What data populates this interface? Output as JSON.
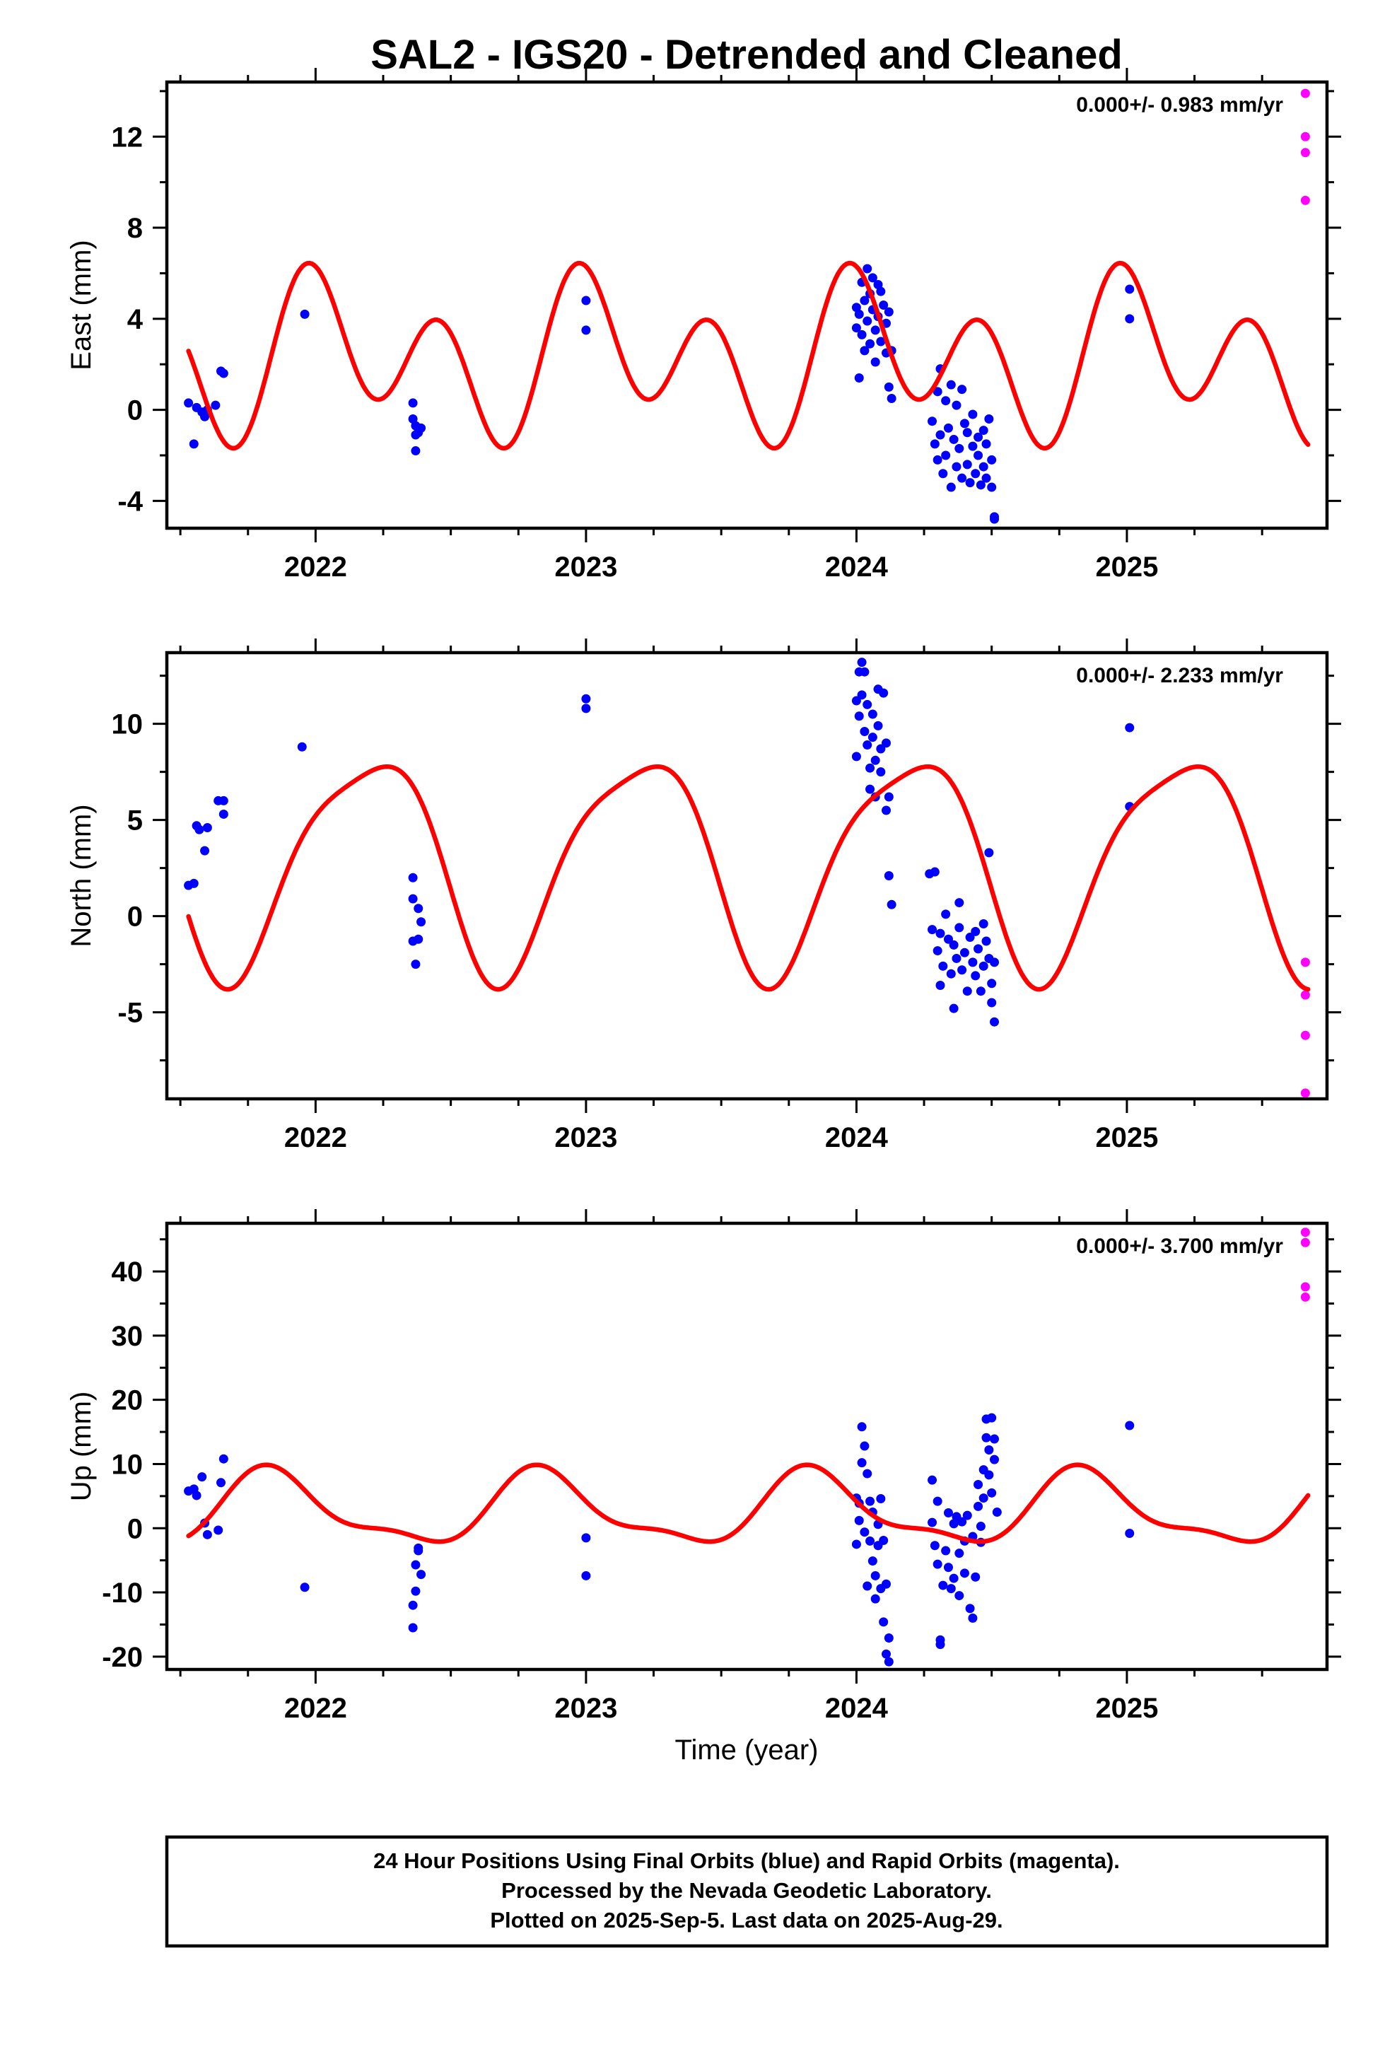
{
  "title": "SAL2 - IGS20 - Detrended and Cleaned",
  "xlabel": "Time (year)",
  "footer": {
    "lines": [
      "24 Hour Positions Using Final Orbits (blue) and Rapid Orbits (magenta).",
      "Processed by the Nevada Geodetic Laboratory.",
      "Plotted on 2025-Sep-5. Last data on 2025-Aug-29."
    ]
  },
  "colors": {
    "final": "#0000ff",
    "rapid": "#ff00ff",
    "model": "#ff0000"
  },
  "chart_data": [
    {
      "type": "scatter",
      "ylabel": "East (mm)",
      "rate_label": "0.000+/- 0.983 mm/yr",
      "xlim": [
        2021.45,
        2025.74
      ],
      "ylim": [
        -5.2,
        14.4
      ],
      "xticks": [
        2022,
        2023,
        2024,
        2025
      ],
      "yticks": [
        -4,
        0,
        4,
        8,
        12
      ],
      "model": {
        "mean": 2.3,
        "a1": 1.65,
        "p1": 1.1,
        "a2": 2.85,
        "p2": 2.05
      },
      "final": [
        [
          2021.53,
          0.3
        ],
        [
          2021.55,
          -1.5
        ],
        [
          2021.56,
          0.1
        ],
        [
          2021.58,
          -0.1
        ],
        [
          2021.59,
          -0.3
        ],
        [
          2021.6,
          0.0
        ],
        [
          2021.63,
          0.2
        ],
        [
          2021.65,
          1.7
        ],
        [
          2021.66,
          1.6
        ],
        [
          2021.96,
          4.2
        ],
        [
          2022.36,
          0.3
        ],
        [
          2022.36,
          -0.4
        ],
        [
          2022.37,
          -0.7
        ],
        [
          2022.37,
          -1.1
        ],
        [
          2022.37,
          -1.8
        ],
        [
          2022.38,
          -1.0
        ],
        [
          2022.39,
          -0.8
        ],
        [
          2023.0,
          4.8
        ],
        [
          2023.0,
          3.5
        ],
        [
          2024.0,
          4.5
        ],
        [
          2024.0,
          3.6
        ],
        [
          2024.01,
          4.2
        ],
        [
          2024.01,
          1.4
        ],
        [
          2024.02,
          5.6
        ],
        [
          2024.02,
          3.3
        ],
        [
          2024.03,
          4.8
        ],
        [
          2024.03,
          2.6
        ],
        [
          2024.04,
          6.2
        ],
        [
          2024.04,
          3.9
        ],
        [
          2024.05,
          5.1
        ],
        [
          2024.05,
          2.9
        ],
        [
          2024.06,
          5.8
        ],
        [
          2024.06,
          4.4
        ],
        [
          2024.07,
          3.5
        ],
        [
          2024.07,
          2.1
        ],
        [
          2024.08,
          5.5
        ],
        [
          2024.08,
          4.1
        ],
        [
          2024.09,
          5.2
        ],
        [
          2024.09,
          3.0
        ],
        [
          2024.1,
          4.6
        ],
        [
          2024.11,
          3.8
        ],
        [
          2024.11,
          2.5
        ],
        [
          2024.12,
          4.3
        ],
        [
          2024.12,
          1.0
        ],
        [
          2024.13,
          2.6
        ],
        [
          2024.13,
          0.5
        ],
        [
          2024.28,
          -0.5
        ],
        [
          2024.29,
          -1.5
        ],
        [
          2024.3,
          0.8
        ],
        [
          2024.3,
          -2.2
        ],
        [
          2024.31,
          1.8
        ],
        [
          2024.31,
          -1.1
        ],
        [
          2024.32,
          -2.8
        ],
        [
          2024.33,
          0.4
        ],
        [
          2024.33,
          -2.0
        ],
        [
          2024.34,
          -0.8
        ],
        [
          2024.35,
          -3.4
        ],
        [
          2024.35,
          1.1
        ],
        [
          2024.36,
          -1.3
        ],
        [
          2024.37,
          -2.5
        ],
        [
          2024.37,
          0.2
        ],
        [
          2024.38,
          -1.7
        ],
        [
          2024.39,
          -3.0
        ],
        [
          2024.39,
          0.9
        ],
        [
          2024.4,
          -0.6
        ],
        [
          2024.41,
          -2.4
        ],
        [
          2024.41,
          -1.0
        ],
        [
          2024.42,
          -3.2
        ],
        [
          2024.43,
          -1.6
        ],
        [
          2024.43,
          -0.2
        ],
        [
          2024.44,
          -2.8
        ],
        [
          2024.45,
          -1.2
        ],
        [
          2024.45,
          -2.0
        ],
        [
          2024.46,
          -3.3
        ],
        [
          2024.47,
          -0.9
        ],
        [
          2024.47,
          -2.5
        ],
        [
          2024.48,
          -1.5
        ],
        [
          2024.48,
          -3.0
        ],
        [
          2024.49,
          -0.4
        ],
        [
          2024.5,
          -2.2
        ],
        [
          2024.5,
          -3.4
        ],
        [
          2024.51,
          -4.7
        ],
        [
          2024.51,
          -4.8
        ],
        [
          2025.01,
          5.3
        ],
        [
          2025.01,
          4.0
        ]
      ],
      "rapid": [
        [
          2025.66,
          13.9
        ],
        [
          2025.66,
          12.0
        ],
        [
          2025.66,
          11.3
        ],
        [
          2025.66,
          9.2
        ]
      ]
    },
    {
      "type": "scatter",
      "ylabel": "North (mm)",
      "rate_label": "0.000+/- 2.233 mm/yr",
      "xlim": [
        2021.45,
        2025.74
      ],
      "ylim": [
        -9.5,
        13.7
      ],
      "xticks": [
        2022,
        2023,
        2024,
        2025
      ],
      "yticks": [
        -5,
        0,
        5,
        10
      ],
      "model": {
        "mean": 2.9,
        "a1": 5.6,
        "p1": 0.35,
        "a2": 1.2,
        "p2": 2.8
      },
      "final": [
        [
          2021.53,
          1.6
        ],
        [
          2021.55,
          1.7
        ],
        [
          2021.56,
          4.7
        ],
        [
          2021.57,
          4.5
        ],
        [
          2021.59,
          3.4
        ],
        [
          2021.6,
          4.6
        ],
        [
          2021.64,
          6.0
        ],
        [
          2021.66,
          6.0
        ],
        [
          2021.66,
          5.3
        ],
        [
          2021.95,
          8.8
        ],
        [
          2022.36,
          2.0
        ],
        [
          2022.36,
          0.9
        ],
        [
          2022.36,
          -1.3
        ],
        [
          2022.37,
          -2.5
        ],
        [
          2022.38,
          0.4
        ],
        [
          2022.38,
          -1.2
        ],
        [
          2022.39,
          -0.3
        ],
        [
          2023.0,
          11.3
        ],
        [
          2023.0,
          10.8
        ],
        [
          2024.0,
          11.2
        ],
        [
          2024.0,
          8.3
        ],
        [
          2024.01,
          12.7
        ],
        [
          2024.01,
          10.4
        ],
        [
          2024.02,
          13.2
        ],
        [
          2024.02,
          11.5
        ],
        [
          2024.03,
          12.7
        ],
        [
          2024.03,
          9.6
        ],
        [
          2024.04,
          11.0
        ],
        [
          2024.04,
          8.9
        ],
        [
          2024.05,
          7.7
        ],
        [
          2024.05,
          6.6
        ],
        [
          2024.06,
          10.5
        ],
        [
          2024.06,
          9.3
        ],
        [
          2024.07,
          8.1
        ],
        [
          2024.07,
          6.2
        ],
        [
          2024.08,
          11.8
        ],
        [
          2024.08,
          9.9
        ],
        [
          2024.09,
          7.5
        ],
        [
          2024.09,
          8.7
        ],
        [
          2024.1,
          11.6
        ],
        [
          2024.11,
          9.0
        ],
        [
          2024.11,
          5.5
        ],
        [
          2024.12,
          6.2
        ],
        [
          2024.12,
          2.1
        ],
        [
          2024.13,
          0.6
        ],
        [
          2024.27,
          2.2
        ],
        [
          2024.28,
          -0.7
        ],
        [
          2024.29,
          2.3
        ],
        [
          2024.3,
          -1.8
        ],
        [
          2024.31,
          -3.6
        ],
        [
          2024.31,
          -0.9
        ],
        [
          2024.32,
          -2.6
        ],
        [
          2024.33,
          0.1
        ],
        [
          2024.34,
          -1.2
        ],
        [
          2024.35,
          -3.0
        ],
        [
          2024.36,
          -4.8
        ],
        [
          2024.36,
          -1.5
        ],
        [
          2024.37,
          -2.2
        ],
        [
          2024.38,
          0.7
        ],
        [
          2024.38,
          -0.6
        ],
        [
          2024.39,
          -2.8
        ],
        [
          2024.4,
          -1.9
        ],
        [
          2024.41,
          -3.9
        ],
        [
          2024.42,
          -1.1
        ],
        [
          2024.43,
          -2.4
        ],
        [
          2024.44,
          -3.1
        ],
        [
          2024.44,
          -0.8
        ],
        [
          2024.45,
          -1.7
        ],
        [
          2024.46,
          -3.9
        ],
        [
          2024.47,
          -2.6
        ],
        [
          2024.47,
          -0.4
        ],
        [
          2024.48,
          -1.3
        ],
        [
          2024.49,
          -2.2
        ],
        [
          2024.49,
          3.3
        ],
        [
          2024.5,
          -3.5
        ],
        [
          2024.5,
          -4.5
        ],
        [
          2024.51,
          -2.4
        ],
        [
          2024.51,
          -5.5
        ],
        [
          2025.01,
          9.8
        ],
        [
          2025.01,
          5.7
        ]
      ],
      "rapid": [
        [
          2025.66,
          -2.4
        ],
        [
          2025.66,
          -4.1
        ],
        [
          2025.66,
          -6.2
        ],
        [
          2025.66,
          -9.2
        ]
      ]
    },
    {
      "type": "scatter",
      "ylabel": "Up (mm)",
      "rate_label": "0.000+/- 3.700 mm/yr",
      "xlim": [
        2021.45,
        2025.74
      ],
      "ylim": [
        -22,
        47.5
      ],
      "xticks": [
        2022,
        2023,
        2024,
        2025
      ],
      "yticks": [
        -20,
        -10,
        0,
        10,
        20,
        30,
        40
      ],
      "model": {
        "mean": 2.75,
        "a1": 5.35,
        "p1": 2.55,
        "a2": 1.9,
        "p2": 4.1
      },
      "final": [
        [
          2021.53,
          5.8
        ],
        [
          2021.55,
          6.1
        ],
        [
          2021.56,
          5.1
        ],
        [
          2021.58,
          8.0
        ],
        [
          2021.59,
          0.8
        ],
        [
          2021.6,
          -1.0
        ],
        [
          2021.64,
          -0.3
        ],
        [
          2021.65,
          7.1
        ],
        [
          2021.66,
          10.8
        ],
        [
          2021.96,
          -9.2
        ],
        [
          2022.36,
          -15.5
        ],
        [
          2022.36,
          -12.0
        ],
        [
          2022.37,
          -9.8
        ],
        [
          2022.37,
          -5.7
        ],
        [
          2022.38,
          -3.1
        ],
        [
          2022.38,
          -3.5
        ],
        [
          2022.39,
          -7.2
        ],
        [
          2023.0,
          -1.5
        ],
        [
          2023.0,
          -7.4
        ],
        [
          2024.0,
          4.7
        ],
        [
          2024.0,
          -2.5
        ],
        [
          2024.01,
          3.9
        ],
        [
          2024.01,
          1.2
        ],
        [
          2024.02,
          15.8
        ],
        [
          2024.02,
          10.2
        ],
        [
          2024.03,
          12.8
        ],
        [
          2024.03,
          -0.6
        ],
        [
          2024.04,
          8.5
        ],
        [
          2024.04,
          -9.0
        ],
        [
          2024.05,
          4.2
        ],
        [
          2024.05,
          -2.0
        ],
        [
          2024.06,
          -5.1
        ],
        [
          2024.06,
          2.5
        ],
        [
          2024.07,
          -11.0
        ],
        [
          2024.07,
          -7.4
        ],
        [
          2024.08,
          -2.7
        ],
        [
          2024.08,
          0.6
        ],
        [
          2024.09,
          -9.4
        ],
        [
          2024.09,
          4.6
        ],
        [
          2024.1,
          -14.6
        ],
        [
          2024.1,
          -1.9
        ],
        [
          2024.11,
          -19.6
        ],
        [
          2024.11,
          -8.7
        ],
        [
          2024.12,
          -20.8
        ],
        [
          2024.12,
          -17.1
        ],
        [
          2024.28,
          7.5
        ],
        [
          2024.28,
          0.9
        ],
        [
          2024.29,
          -2.7
        ],
        [
          2024.3,
          4.2
        ],
        [
          2024.3,
          -5.6
        ],
        [
          2024.31,
          -17.4
        ],
        [
          2024.31,
          -18.1
        ],
        [
          2024.32,
          -8.9
        ],
        [
          2024.33,
          -3.5
        ],
        [
          2024.34,
          2.4
        ],
        [
          2024.34,
          -6.1
        ],
        [
          2024.35,
          -9.4
        ],
        [
          2024.36,
          0.7
        ],
        [
          2024.36,
          -7.8
        ],
        [
          2024.37,
          1.8
        ],
        [
          2024.38,
          -3.9
        ],
        [
          2024.38,
          -10.5
        ],
        [
          2024.39,
          1.0
        ],
        [
          2024.4,
          -2.0
        ],
        [
          2024.4,
          -7.0
        ],
        [
          2024.41,
          2.0
        ],
        [
          2024.42,
          -12.5
        ],
        [
          2024.43,
          -14.0
        ],
        [
          2024.43,
          -1.3
        ],
        [
          2024.44,
          -7.6
        ],
        [
          2024.45,
          3.4
        ],
        [
          2024.45,
          6.8
        ],
        [
          2024.46,
          -2.2
        ],
        [
          2024.46,
          0.3
        ],
        [
          2024.47,
          4.7
        ],
        [
          2024.47,
          9.1
        ],
        [
          2024.48,
          17.0
        ],
        [
          2024.48,
          14.1
        ],
        [
          2024.49,
          8.3
        ],
        [
          2024.49,
          12.2
        ],
        [
          2024.5,
          17.2
        ],
        [
          2024.5,
          5.5
        ],
        [
          2024.51,
          10.7
        ],
        [
          2024.51,
          13.9
        ],
        [
          2024.52,
          2.5
        ],
        [
          2025.01,
          16.0
        ],
        [
          2025.01,
          -0.8
        ]
      ],
      "rapid": [
        [
          2025.66,
          46.1
        ],
        [
          2025.66,
          44.5
        ],
        [
          2025.66,
          37.6
        ],
        [
          2025.66,
          36.0
        ]
      ]
    }
  ]
}
